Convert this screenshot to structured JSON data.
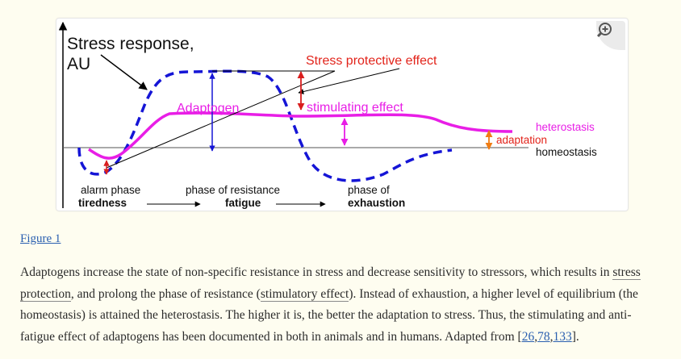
{
  "figure": {
    "zoom_icon": "magnify-plus-icon",
    "y_axis_label_line1": "Stress response,",
    "y_axis_label_line2": "AU",
    "stress_protective_label": "Stress protective effect",
    "adaptogen_label": "Adaptogen",
    "stimulating_label": "stimulating effect",
    "heterostasis_label": "heterostasis",
    "adaptation_label": "adaptation",
    "homeostasis_label": "homeostasis",
    "alarm_phase_label": "alarm phase",
    "tiredness_label": "tiredness",
    "resistance_phase_label": "phase of resistance",
    "fatigue_label": "fatigue",
    "exhaustion_phase_label": "phase of",
    "exhaustion_label": "exhaustion",
    "colors": {
      "stress_curve": "#1515d6",
      "adaptogen_curve": "#e81ee6",
      "red_arrow": "#d91e1e",
      "orange_arrow": "#f07d14",
      "label_red": "#e2231a",
      "label_magenta": "#e81ee6"
    }
  },
  "figure_link": "Figure 1",
  "caption": {
    "part1": "Adaptogens increase the state of non-specific resistance in stress and decrease sensitivity to stressors, which results in ",
    "term1": "stress protection",
    "part2": ", and prolong the phase of resistance (",
    "term2": "stimulatory effect",
    "part3": "). Instead of exhaustion, a higher level of equilibrium (the homeostasis) is attained the heterostasis. The higher it is, the better the adaptation to stress. Thus, the stimulating and anti-fatigue effect of adaptogens has been documented in both in animals and in humans. Adapted from [",
    "ref1": "26",
    "sep1": ",",
    "ref2": "78",
    "sep2": ",",
    "ref3": "133",
    "part4": "]."
  }
}
